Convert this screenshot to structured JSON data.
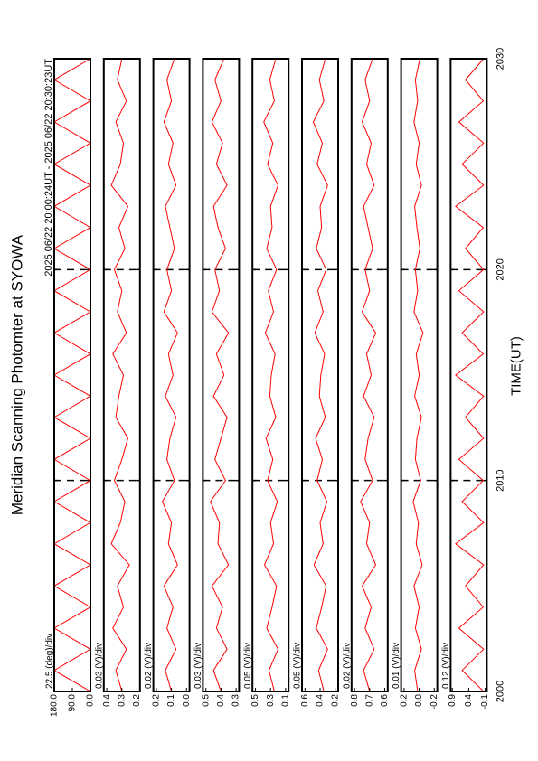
{
  "chart_data": [
    {
      "type": "line",
      "title": "Meridian Scanning Photomter at SYOWA",
      "subtitle": "2025 06/22 20:00:24UT - 2025 06/22 20:30:23UT",
      "ylabel": "22.5 (deg)/div",
      "color": "#ff0000",
      "x": [
        2000,
        2001,
        2002,
        2003,
        2004,
        2005,
        2006,
        2007,
        2008,
        2009,
        2010,
        2011,
        2012,
        2013,
        2014,
        2015,
        2016,
        2017,
        2018,
        2019,
        2020,
        2021,
        2022,
        2023,
        2024,
        2025,
        2026,
        2027,
        2028,
        2029,
        2030
      ],
      "values": [
        0,
        180,
        0,
        180,
        0,
        180,
        0,
        180,
        0,
        180,
        0,
        180,
        0,
        180,
        0,
        180,
        0,
        180,
        0,
        180,
        0,
        180,
        0,
        180,
        0,
        180,
        0,
        180,
        0,
        180,
        0
      ],
      "xlim": [
        2000,
        2030
      ],
      "ylim": [
        0,
        180
      ],
      "yticks": [
        {
          "value": 180,
          "label": "180.0"
        },
        {
          "value": 90,
          "label": "90.0"
        },
        {
          "value": 0,
          "label": "0.0"
        }
      ]
    },
    {
      "type": "line",
      "ylabel": "0.03 (V)/div",
      "color": "#ff0000",
      "x": [
        2000,
        2001,
        2002,
        2003,
        2004,
        2005,
        2006,
        2007,
        2008,
        2009,
        2010,
        2011,
        2012,
        2013,
        2014,
        2015,
        2016,
        2017,
        2018,
        2019,
        2020,
        2021,
        2022,
        2023,
        2024,
        2025,
        2026,
        2027,
        2028,
        2029,
        2030
      ],
      "values": [
        0.3,
        0.34,
        0.27,
        0.36,
        0.29,
        0.33,
        0.25,
        0.37,
        0.31,
        0.28,
        0.35,
        0.3,
        0.26,
        0.34,
        0.32,
        0.29,
        0.36,
        0.27,
        0.33,
        0.3,
        0.35,
        0.28,
        0.32,
        0.26,
        0.37,
        0.31,
        0.29,
        0.34,
        0.27,
        0.33,
        0.3
      ],
      "xlim": [
        2000,
        2030
      ],
      "ylim": [
        0.18,
        0.42
      ],
      "yticks": [
        0.4,
        0.3,
        0.2
      ]
    },
    {
      "type": "line",
      "ylabel": "0.02 (V)/div",
      "color": "#ff0000",
      "x": [
        2000,
        2001,
        2002,
        2003,
        2004,
        2005,
        2006,
        2007,
        2008,
        2009,
        2010,
        2011,
        2012,
        2013,
        2014,
        2015,
        2016,
        2017,
        2018,
        2019,
        2020,
        2021,
        2022,
        2023,
        2024,
        2025,
        2026,
        2027,
        2028,
        2029,
        2030
      ],
      "values": [
        0.1,
        0.14,
        0.07,
        0.13,
        0.09,
        0.15,
        0.06,
        0.12,
        0.1,
        0.16,
        0.08,
        0.13,
        0.11,
        0.07,
        0.14,
        0.09,
        0.12,
        0.06,
        0.15,
        0.1,
        0.13,
        0.08,
        0.11,
        0.14,
        0.07,
        0.12,
        0.09,
        0.15,
        0.1,
        0.13,
        0.08
      ],
      "xlim": [
        2000,
        2030
      ],
      "ylim": [
        -0.02,
        0.22
      ],
      "yticks": [
        0.2,
        0.1,
        {
          "value": 0,
          "label": "0.0"
        }
      ]
    },
    {
      "type": "line",
      "ylabel": "0.03 (V)/div",
      "color": "#ff0000",
      "x": [
        2000,
        2001,
        2002,
        2003,
        2004,
        2005,
        2006,
        2007,
        2008,
        2009,
        2010,
        2011,
        2012,
        2013,
        2014,
        2015,
        2016,
        2017,
        2018,
        2019,
        2020,
        2021,
        2022,
        2023,
        2024,
        2025,
        2026,
        2027,
        2028,
        2029,
        2030
      ],
      "values": [
        0.4,
        0.45,
        0.36,
        0.43,
        0.39,
        0.46,
        0.35,
        0.42,
        0.41,
        0.47,
        0.37,
        0.44,
        0.4,
        0.36,
        0.45,
        0.38,
        0.43,
        0.35,
        0.46,
        0.41,
        0.44,
        0.37,
        0.42,
        0.45,
        0.36,
        0.43,
        0.39,
        0.46,
        0.4,
        0.44,
        0.38
      ],
      "xlim": [
        2000,
        2030
      ],
      "ylim": [
        0.28,
        0.52
      ],
      "yticks": [
        0.5,
        0.4,
        0.3
      ]
    },
    {
      "type": "line",
      "ylabel": "0.05 (V)/div",
      "color": "#ff0000",
      "x": [
        2000,
        2001,
        2002,
        2003,
        2004,
        2005,
        2006,
        2007,
        2008,
        2009,
        2010,
        2011,
        2012,
        2013,
        2014,
        2015,
        2016,
        2017,
        2018,
        2019,
        2020,
        2021,
        2022,
        2023,
        2024,
        2025,
        2026,
        2027,
        2028,
        2029,
        2030
      ],
      "values": [
        0.25,
        0.32,
        0.2,
        0.35,
        0.28,
        0.22,
        0.38,
        0.26,
        0.3,
        0.21,
        0.34,
        0.27,
        0.36,
        0.23,
        0.31,
        0.29,
        0.24,
        0.37,
        0.26,
        0.33,
        0.22,
        0.35,
        0.28,
        0.3,
        0.2,
        0.34,
        0.27,
        0.39,
        0.25,
        0.31,
        0.23
      ],
      "xlim": [
        2000,
        2030
      ],
      "ylim": [
        0.06,
        0.54
      ],
      "yticks": [
        0.5,
        0.3,
        0.1
      ]
    },
    {
      "type": "line",
      "ylabel": "0.05 (V)/div",
      "color": "#ff0000",
      "x": [
        2000,
        2001,
        2002,
        2003,
        2004,
        2005,
        2006,
        2007,
        2008,
        2009,
        2010,
        2011,
        2012,
        2013,
        2014,
        2015,
        2016,
        2017,
        2018,
        2019,
        2020,
        2021,
        2022,
        2023,
        2024,
        2025,
        2026,
        2027,
        2028,
        2029,
        2030
      ],
      "values": [
        0.35,
        0.42,
        0.3,
        0.45,
        0.38,
        0.32,
        0.48,
        0.36,
        0.4,
        0.31,
        0.44,
        0.37,
        0.46,
        0.33,
        0.41,
        0.39,
        0.34,
        0.47,
        0.36,
        0.43,
        0.32,
        0.45,
        0.38,
        0.4,
        0.3,
        0.44,
        0.37,
        0.49,
        0.35,
        0.41,
        0.33
      ],
      "xlim": [
        2000,
        2030
      ],
      "ylim": [
        0.16,
        0.64
      ],
      "yticks": [
        0.6,
        0.4,
        0.2
      ]
    },
    {
      "type": "line",
      "ylabel": "0.02 (V)/div",
      "color": "#ff0000",
      "x": [
        2000,
        2001,
        2002,
        2003,
        2004,
        2005,
        2006,
        2007,
        2008,
        2009,
        2010,
        2011,
        2012,
        2013,
        2014,
        2015,
        2016,
        2017,
        2018,
        2019,
        2020,
        2021,
        2022,
        2023,
        2024,
        2025,
        2026,
        2027,
        2028,
        2029,
        2030
      ],
      "values": [
        0.7,
        0.74,
        0.67,
        0.73,
        0.69,
        0.75,
        0.66,
        0.72,
        0.7,
        0.76,
        0.68,
        0.73,
        0.71,
        0.67,
        0.74,
        0.69,
        0.72,
        0.66,
        0.75,
        0.7,
        0.73,
        0.68,
        0.71,
        0.74,
        0.67,
        0.72,
        0.69,
        0.75,
        0.7,
        0.73,
        0.68
      ],
      "xlim": [
        2000,
        2030
      ],
      "ylim": [
        0.58,
        0.82
      ],
      "yticks": [
        0.8,
        0.7,
        0.6
      ]
    },
    {
      "type": "line",
      "ylabel": "0.01 (V)/div",
      "color": "#ff0000",
      "x": [
        2000,
        2001,
        2002,
        2003,
        2004,
        2005,
        2006,
        2007,
        2008,
        2009,
        2010,
        2011,
        2012,
        2013,
        2014,
        2015,
        2016,
        2017,
        2018,
        2019,
        2020,
        2021,
        2022,
        2023,
        2024,
        2025,
        2026,
        2027,
        2028,
        2029,
        2030
      ],
      "values": [
        0.02,
        0.06,
        -0.03,
        0.05,
        0.0,
        0.07,
        -0.04,
        0.04,
        0.01,
        0.08,
        -0.02,
        0.05,
        0.03,
        -0.03,
        0.06,
        0.0,
        0.04,
        -0.05,
        0.07,
        0.02,
        0.05,
        -0.01,
        0.03,
        0.06,
        -0.03,
        0.04,
        0.0,
        0.07,
        0.02,
        0.05,
        -0.01
      ],
      "xlim": [
        2000,
        2030
      ],
      "ylim": [
        -0.24,
        0.24
      ],
      "yticks": [
        0.2,
        {
          "value": 0,
          "label": "0.0"
        },
        -0.2
      ]
    },
    {
      "type": "line",
      "ylabel": "0.12 (V)/div",
      "xlabel": "TIME(UT)",
      "color": "#ff0000",
      "x": [
        2000,
        2001,
        2002,
        2003,
        2004,
        2005,
        2006,
        2007,
        2008,
        2009,
        2010,
        2011,
        2012,
        2013,
        2014,
        2015,
        2016,
        2017,
        2018,
        2019,
        2020,
        2021,
        2022,
        2023,
        2024,
        2025,
        2026,
        2027,
        2028,
        2029,
        2030
      ],
      "values": [
        -0.05,
        0.6,
        -0.05,
        0.7,
        -0.04,
        0.5,
        -0.05,
        0.8,
        -0.05,
        0.6,
        -0.04,
        0.7,
        -0.05,
        0.5,
        -0.05,
        0.8,
        -0.04,
        0.6,
        -0.05,
        0.7,
        -0.05,
        0.5,
        -0.04,
        0.8,
        -0.05,
        0.6,
        -0.05,
        0.7,
        -0.04,
        0.5,
        -0.05
      ],
      "xlim": [
        2000,
        2030
      ],
      "ylim": [
        -0.15,
        0.95
      ],
      "yticks": [
        0.9,
        0.4,
        -0.1
      ],
      "xticks": [
        2000,
        2010,
        2020,
        2030
      ]
    }
  ]
}
